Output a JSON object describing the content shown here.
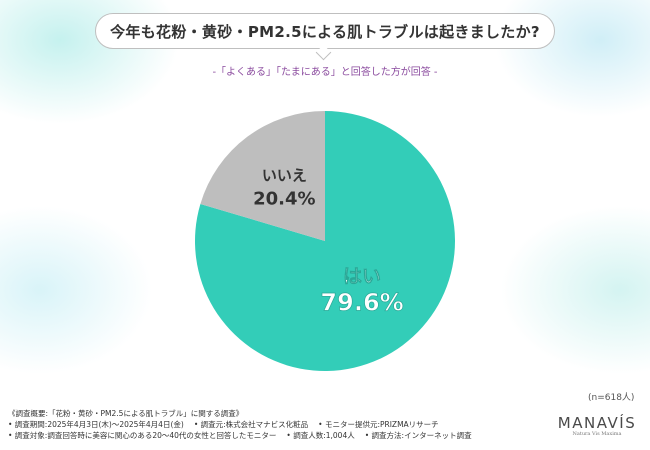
{
  "header": {
    "title": "今年も花粉・黄砂・PM2.5による肌トラブルは起きましたか?",
    "subtitle": "-「よくある」「たまにある」と回答した方が回答 -"
  },
  "chart_data": {
    "type": "pie",
    "slices": [
      {
        "label": "はい",
        "value": 79.6,
        "value_label": "79.6%",
        "color": "#33CDB8"
      },
      {
        "label": "いいえ",
        "value": 20.4,
        "value_label": "20.4%",
        "color": "#BEBEBE"
      }
    ],
    "sample_size": "(n=618人)"
  },
  "footer": {
    "line1": "《調査概要:「花粉・黄砂・PM2.5による肌トラブル」に関する調査》",
    "line2a": "• 調査期間:2025年4月3日(木)〜2025年4月4日(金)",
    "line2b": "• 調査元:株式会社マナビス化粧品",
    "line2c": "• モニター提供元:PRIZMAリサーチ",
    "line3a": "• 調査対象:調査回答時に美容に関心のある20〜40代の女性と回答したモニター",
    "line3b": "• 調査人数:1,004人",
    "line3c": "• 調査方法:インターネット調査"
  },
  "logo": {
    "name": "MANAVÍS",
    "tagline": "Natura Vis Maxima"
  }
}
